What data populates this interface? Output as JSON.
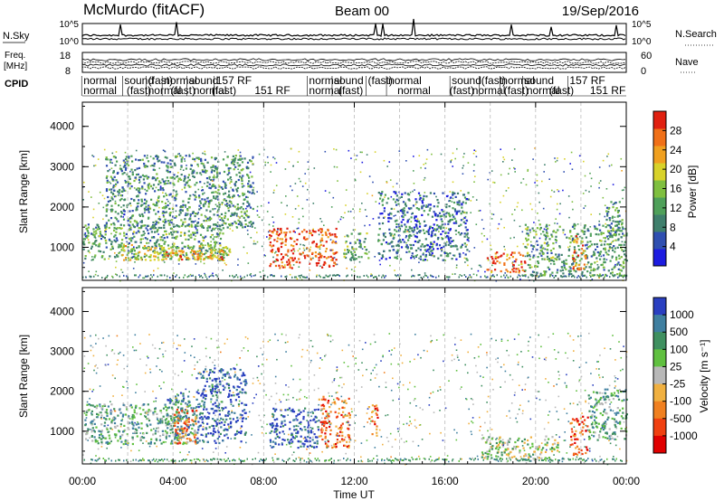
{
  "header": {
    "title": "McMurdo (fitACF)",
    "beam": "Beam 00",
    "date": "19/Sep/2016"
  },
  "top_panels": {
    "left_label_nsky": "N.Sky",
    "right_label_nsearch": "N.Search",
    "nsky_ticks": [
      "10^5",
      "10^0"
    ],
    "nsearch_ticks": [
      "10^5",
      "10^0"
    ],
    "left_label_freq_1": "Freq.",
    "left_label_freq_2": "[MHz]",
    "freq_ticks": [
      "18",
      "8"
    ],
    "right_label_nave": "Nave",
    "nave_ticks": [
      "60",
      "0"
    ],
    "cpid_label": "CPID",
    "cpid_row1": [
      {
        "t": 0.05,
        "text": "normal"
      },
      {
        "t": 1.85,
        "text": "sound"
      },
      {
        "t": 2.9,
        "text": "(fast)"
      },
      {
        "t": 3.6,
        "text": "normal"
      },
      {
        "t": 4.7,
        "text": "sound"
      },
      {
        "t": 5.9,
        "text": "157 RF"
      },
      {
        "t": 10.0,
        "text": "normal"
      },
      {
        "t": 11.1,
        "text": "sound"
      },
      {
        "t": 12.6,
        "text": "(fast)"
      },
      {
        "t": 13.5,
        "text": "normal"
      },
      {
        "t": 16.3,
        "text": "sound"
      },
      {
        "t": 17.6,
        "text": "(fast)"
      },
      {
        "t": 18.5,
        "text": "normal"
      },
      {
        "t": 19.5,
        "text": "sound"
      },
      {
        "t": 21.5,
        "text": "157 RF"
      }
    ],
    "cpid_row2": [
      {
        "t": 0.05,
        "text": "normal"
      },
      {
        "t": 1.95,
        "text": "(fast)"
      },
      {
        "t": 2.9,
        "text": "normal"
      },
      {
        "t": 3.9,
        "text": "(fast)"
      },
      {
        "t": 4.9,
        "text": "normal"
      },
      {
        "t": 5.7,
        "text": "(fast)"
      },
      {
        "t": 7.6,
        "text": "151 RF"
      },
      {
        "t": 10.0,
        "text": "normal"
      },
      {
        "t": 11.3,
        "text": "(fast)"
      },
      {
        "t": 13.9,
        "text": "normal"
      },
      {
        "t": 16.2,
        "text": "(fast)"
      },
      {
        "t": 17.2,
        "text": "normal"
      },
      {
        "t": 18.6,
        "text": "(fast)"
      },
      {
        "t": 19.6,
        "text": "normal"
      },
      {
        "t": 20.6,
        "text": "(fast)"
      },
      {
        "t": 22.4,
        "text": "151 RF"
      }
    ]
  },
  "chart_data": [
    {
      "type": "heatmap",
      "title": "",
      "xlabel": "",
      "ylabel": "Slant Range [km]",
      "xlim": [
        0,
        24
      ],
      "ylim": [
        180,
        4600
      ],
      "x_tick_values": [
        0,
        4,
        8,
        12,
        16,
        20,
        24
      ],
      "y_tick_values": [
        1000,
        2000,
        3000,
        4000
      ],
      "y_tick_labels": [
        "1000",
        "2000",
        "3000",
        "4000"
      ],
      "colorbar": {
        "label": "Power [dB]",
        "range": [
          0,
          32
        ],
        "ticks": [
          4,
          8,
          12,
          16,
          20,
          24,
          28
        ],
        "tick_labels": [
          "4",
          "8",
          "12",
          "16",
          "20",
          "24",
          "28"
        ],
        "colors": [
          "#1d1ce0",
          "#2f4fb0",
          "#3f7f6c",
          "#4fa05a",
          "#7fbf3f",
          "#d8d22a",
          "#f0a020",
          "#f07018",
          "#e02010"
        ]
      },
      "blobs": [
        {
          "t0": 0.0,
          "t1": 6.2,
          "r0": 700,
          "r1": 1600,
          "level": 0.35
        },
        {
          "t0": 1.5,
          "t1": 6.5,
          "r0": 700,
          "r1": 1100,
          "level": 0.6
        },
        {
          "t0": 3.5,
          "t1": 6.2,
          "r0": 700,
          "r1": 950,
          "level": 0.8
        },
        {
          "t0": 1.0,
          "t1": 7.5,
          "r0": 1500,
          "r1": 3300,
          "level": 0.3
        },
        {
          "t0": 8.2,
          "t1": 11.2,
          "r0": 500,
          "r1": 1500,
          "level": 0.95
        },
        {
          "t0": 11.5,
          "t1": 12.6,
          "r0": 700,
          "r1": 1400,
          "level": 0.4
        },
        {
          "t0": 13.0,
          "t1": 17.0,
          "r0": 700,
          "r1": 2400,
          "level": 0.2
        },
        {
          "t0": 17.8,
          "t1": 19.5,
          "r0": 400,
          "r1": 900,
          "level": 0.9
        },
        {
          "t0": 19.5,
          "t1": 24.0,
          "r0": 300,
          "r1": 1600,
          "level": 0.35
        },
        {
          "t0": 21.6,
          "t1": 22.2,
          "r0": 400,
          "r1": 1300,
          "level": 0.85
        },
        {
          "t0": 23.0,
          "t1": 23.8,
          "r0": 1200,
          "r1": 2200,
          "level": 0.3
        }
      ]
    },
    {
      "type": "heatmap",
      "title": "",
      "xlabel": "Time UT",
      "ylabel": "Slant Range [km]",
      "xlim": [
        0,
        24
      ],
      "ylim": [
        180,
        4600
      ],
      "x_tick_values": [
        0,
        4,
        8,
        12,
        16,
        20,
        24
      ],
      "x_tick_labels": [
        "00:00",
        "04:00",
        "08:00",
        "12:00",
        "16:00",
        "20:00",
        "00:00"
      ],
      "y_tick_values": [
        1000,
        2000,
        3000,
        4000
      ],
      "y_tick_labels": [
        "1000",
        "2000",
        "3000",
        "4000"
      ],
      "colorbar": {
        "label": "Velocity [m s⁻¹]",
        "ticks": [
          1000,
          500,
          100,
          25,
          -25,
          -100,
          -500,
          -1000
        ],
        "tick_labels": [
          "1000",
          "500",
          "100",
          "25",
          "-25",
          "-100",
          "-500",
          "-1000"
        ],
        "colors": [
          "#2a3fc0",
          "#3f7fa0",
          "#3f9060",
          "#60c040",
          "#b8b8b8",
          "#f0b040",
          "#f08020",
          "#f04010",
          "#e00000"
        ]
      },
      "blobs": [
        {
          "t0": 0.0,
          "t1": 5.0,
          "r0": 700,
          "r1": 1700,
          "level": 0.3
        },
        {
          "t0": 3.6,
          "t1": 4.7,
          "r0": 800,
          "r1": 2000,
          "level": 0.2
        },
        {
          "t0": 4.0,
          "t1": 5.0,
          "r0": 700,
          "r1": 1600,
          "level": 0.75
        },
        {
          "t0": 5.0,
          "t1": 7.2,
          "r0": 700,
          "r1": 2600,
          "level": 0.05
        },
        {
          "t0": 8.2,
          "t1": 10.4,
          "r0": 600,
          "r1": 1600,
          "level": 0.05
        },
        {
          "t0": 10.4,
          "t1": 11.8,
          "r0": 600,
          "r1": 1900,
          "level": 0.8
        },
        {
          "t0": 12.6,
          "t1": 13.0,
          "r0": 900,
          "r1": 1700,
          "level": 0.8
        },
        {
          "t0": 17.5,
          "t1": 21.0,
          "r0": 300,
          "r1": 900,
          "level": 0.45
        },
        {
          "t0": 21.5,
          "t1": 22.3,
          "r0": 400,
          "r1": 1400,
          "level": 0.85
        },
        {
          "t0": 22.3,
          "t1": 24.0,
          "r0": 800,
          "r1": 2100,
          "level": 0.3
        }
      ]
    }
  ]
}
